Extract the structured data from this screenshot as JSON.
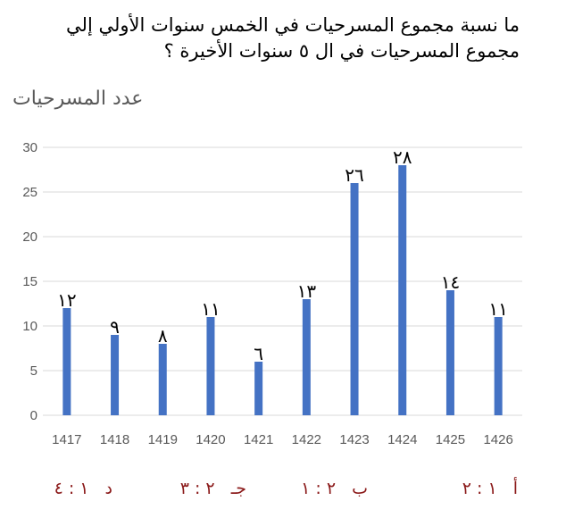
{
  "question": {
    "line1": "ما نسبة مجموع المسرحيات في الخمس سنوات الأولي إلي",
    "line2": "مجموع المسرحيات في ال ٥ سنوات الأخيرة ؟"
  },
  "choices": [
    {
      "letter": "أ",
      "ratio": "١ : ٢"
    },
    {
      "letter": "ب",
      "ratio": "٢ : ١"
    },
    {
      "letter": "جـ",
      "ratio": "٢ : ٣"
    },
    {
      "letter": "د",
      "ratio": "١ : ٤"
    }
  ],
  "colors": {
    "bar": "#4472c4",
    "grid": "#d9d9d9",
    "choice_text": "#8b1a1a",
    "axis_text": "#595959"
  },
  "chart_data": {
    "type": "bar",
    "title": "",
    "ylabel": "عدد المسرحيات",
    "xlabel": "",
    "categories": [
      "1417",
      "1418",
      "1419",
      "1420",
      "1421",
      "1422",
      "1423",
      "1424",
      "1425",
      "1426"
    ],
    "values": [
      12,
      9,
      8,
      11,
      6,
      13,
      26,
      28,
      14,
      11
    ],
    "data_labels": [
      "١٢",
      "٩",
      "٨",
      "١١",
      "٦",
      "١٣",
      "٢٦",
      "٢٨",
      "١٤",
      "١١"
    ],
    "ylim": [
      0,
      30
    ],
    "yticks": [
      0,
      5,
      10,
      15,
      20,
      25,
      30
    ],
    "grid": true,
    "legend": "none"
  }
}
